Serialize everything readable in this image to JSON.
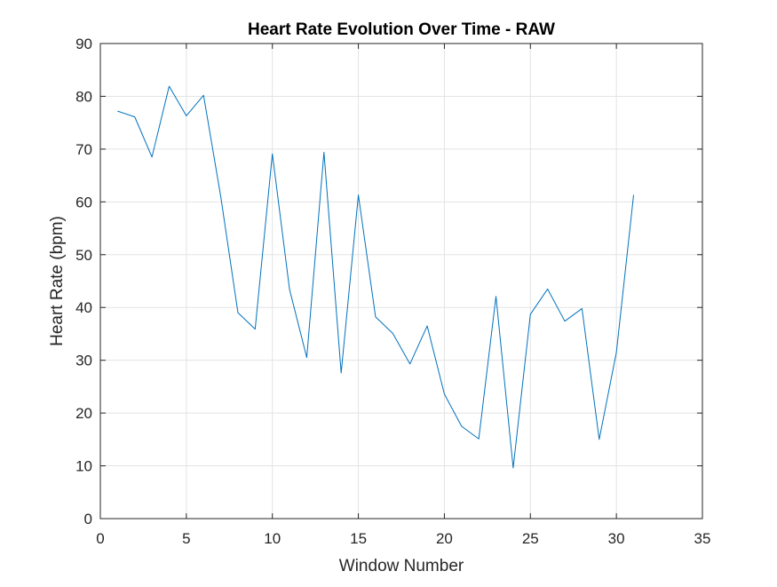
{
  "chart_data": {
    "type": "line",
    "title": "Heart Rate Evolution Over Time - RAW",
    "xlabel": "Window Number",
    "ylabel": "Heart Rate (bpm)",
    "xlim": [
      0,
      35
    ],
    "ylim": [
      0,
      90
    ],
    "xticks": [
      "0",
      "5",
      "10",
      "15",
      "20",
      "25",
      "30",
      "35"
    ],
    "yticks": [
      "0",
      "10",
      "20",
      "30",
      "40",
      "50",
      "60",
      "70",
      "80",
      "90"
    ],
    "grid": true,
    "series": [
      {
        "color": "#0072BD",
        "x": [
          1,
          2,
          3,
          4,
          5,
          6,
          7,
          8,
          9,
          10,
          11,
          12,
          13,
          14,
          15,
          16,
          17,
          18,
          19,
          20,
          21,
          22,
          23,
          24,
          25,
          26,
          27,
          28,
          29,
          30,
          31
        ],
        "y": [
          77.2,
          76.1,
          68.5,
          81.9,
          76.3,
          80.2,
          61.0,
          39.0,
          35.9,
          69.1,
          43.4,
          30.5,
          69.4,
          27.6,
          61.3,
          38.2,
          35.1,
          29.3,
          36.5,
          23.6,
          17.5,
          15.1,
          42.1,
          9.6,
          38.7,
          43.5,
          37.4,
          39.8,
          15.0,
          31.5,
          61.3
        ]
      }
    ]
  }
}
